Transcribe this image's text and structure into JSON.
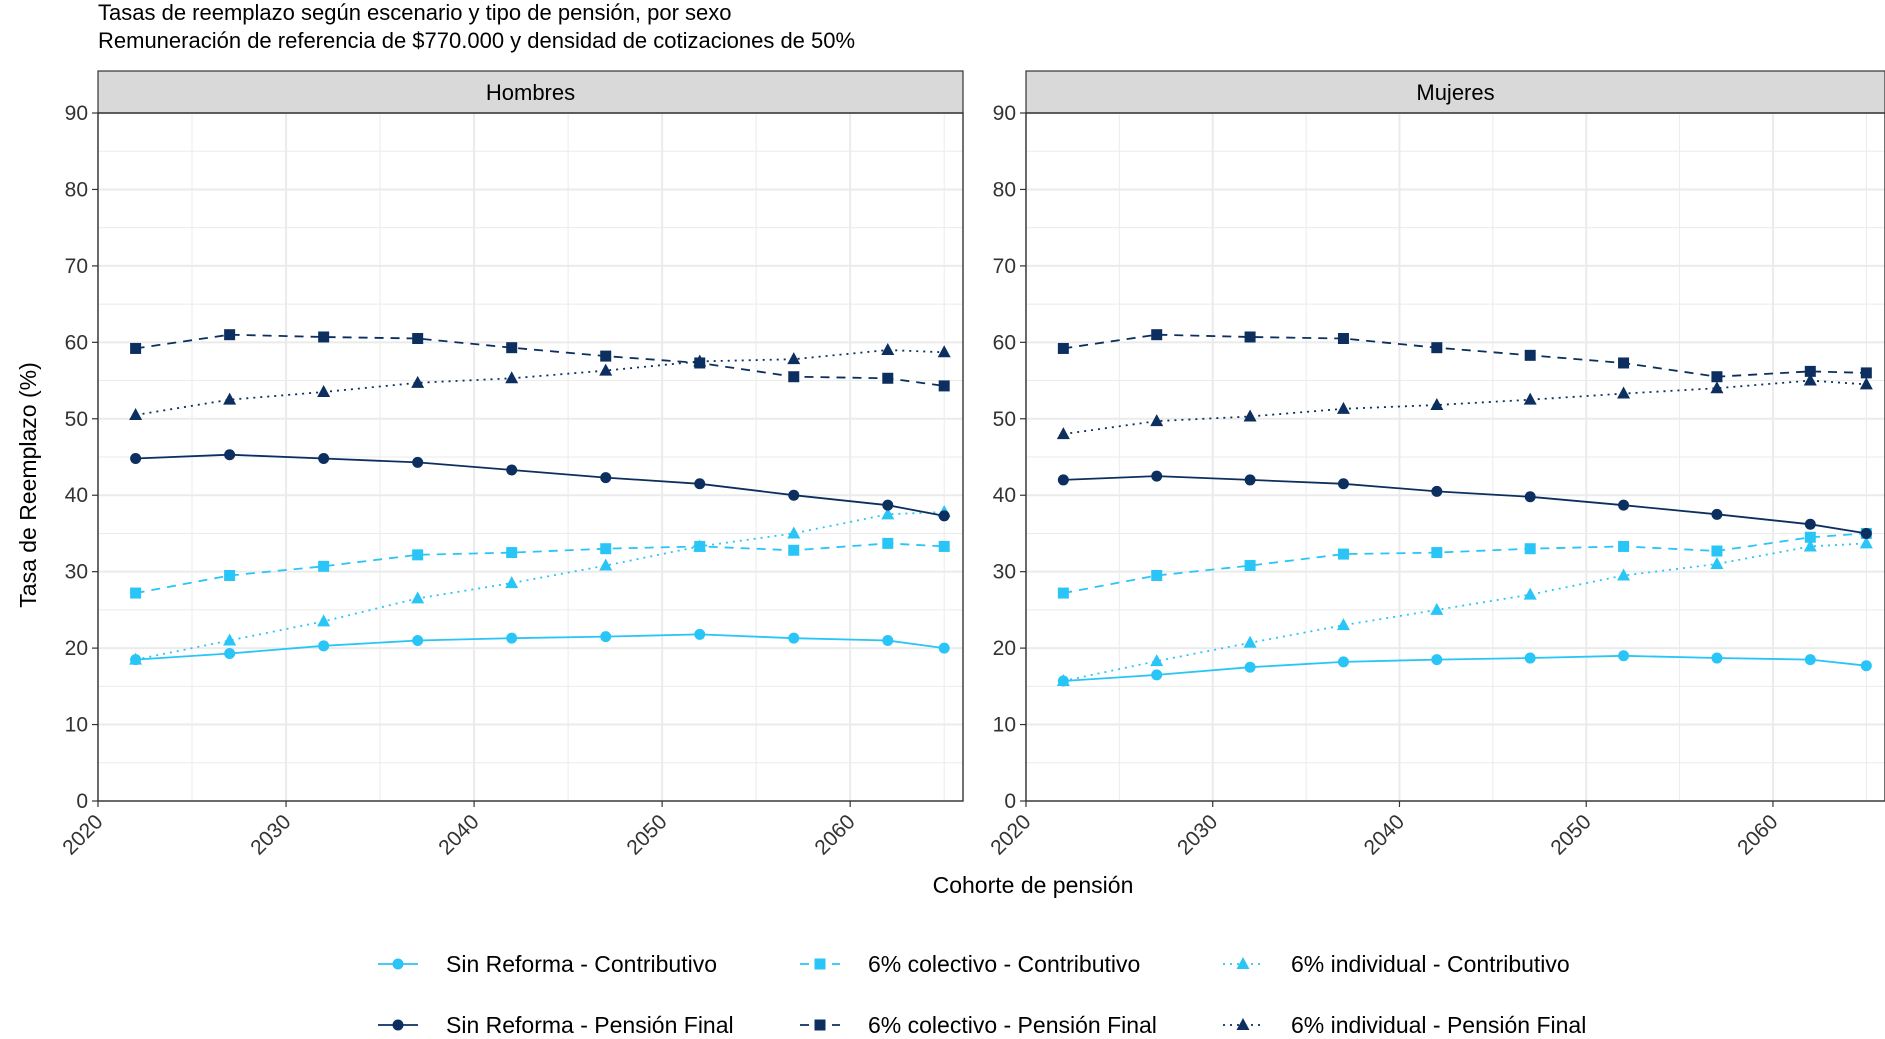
{
  "title_line_1": "Tasas de reemplazo según escenario y tipo de pensión, por sexo",
  "title_line_2": "Remuneración de referencia de $770.000 y densidad de cotizaciones de 50%",
  "colors": {
    "light": "#29c5f6",
    "dark": "#0c2f5f",
    "panel_strip": "#d9d9d9",
    "grid": "#ebebeb"
  },
  "chart_data": {
    "type": "line",
    "xlabel": "Cohorte de pensión",
    "ylabel": "Tasa de Reemplazo (%)",
    "xlim": [
      2020,
      2066
    ],
    "ylim": [
      0,
      90
    ],
    "x_ticks": [
      "2020",
      "2030",
      "2040",
      "2050",
      "2060"
    ],
    "y_ticks": [
      "0",
      "10",
      "20",
      "30",
      "40",
      "50",
      "60",
      "70",
      "80",
      "90"
    ],
    "grid": true,
    "legend_position": "bottom",
    "x": [
      2022,
      2027,
      2032,
      2037,
      2042,
      2047,
      2052,
      2057,
      2062,
      2065
    ],
    "panels": [
      {
        "name": "Hombres",
        "series": [
          {
            "name": "Sin Reforma - Contributivo",
            "values": [
              18.5,
              19.3,
              20.3,
              21.0,
              21.3,
              21.5,
              21.8,
              21.3,
              21.0,
              20.0
            ]
          },
          {
            "name": "6% colectivo - Contributivo",
            "values": [
              27.2,
              29.5,
              30.7,
              32.2,
              32.5,
              33.0,
              33.3,
              32.8,
              33.7,
              33.3
            ]
          },
          {
            "name": "6% individual - Contributivo",
            "values": [
              18.5,
              21.0,
              23.5,
              26.5,
              28.5,
              30.8,
              33.3,
              35.0,
              37.5,
              37.8
            ]
          },
          {
            "name": "Sin Reforma - Pensión Final",
            "values": [
              44.8,
              45.3,
              44.8,
              44.3,
              43.3,
              42.3,
              41.5,
              40.0,
              38.7,
              37.3
            ]
          },
          {
            "name": "6% colectivo - Pensión Final",
            "values": [
              59.2,
              61.0,
              60.7,
              60.5,
              59.3,
              58.2,
              57.3,
              55.5,
              55.3,
              54.3
            ]
          },
          {
            "name": "6% individual - Pensión Final",
            "values": [
              50.5,
              52.5,
              53.5,
              54.7,
              55.3,
              56.3,
              57.5,
              57.8,
              59.0,
              58.7
            ]
          }
        ]
      },
      {
        "name": "Mujeres",
        "series": [
          {
            "name": "Sin Reforma - Contributivo",
            "values": [
              15.7,
              16.5,
              17.5,
              18.2,
              18.5,
              18.7,
              19.0,
              18.7,
              18.5,
              17.7
            ]
          },
          {
            "name": "6% colectivo - Contributivo",
            "values": [
              27.2,
              29.5,
              30.8,
              32.3,
              32.5,
              33.0,
              33.3,
              32.7,
              34.5,
              35.0
            ]
          },
          {
            "name": "6% individual - Contributivo",
            "values": [
              15.7,
              18.3,
              20.7,
              23.0,
              25.0,
              27.0,
              29.5,
              31.0,
              33.3,
              33.7
            ]
          },
          {
            "name": "Sin Reforma - Pensión Final",
            "values": [
              42.0,
              42.5,
              42.0,
              41.5,
              40.5,
              39.8,
              38.7,
              37.5,
              36.2,
              35.0
            ]
          },
          {
            "name": "6% colectivo - Pensión Final",
            "values": [
              59.2,
              61.0,
              60.7,
              60.5,
              59.3,
              58.3,
              57.3,
              55.5,
              56.2,
              56.0
            ]
          },
          {
            "name": "6% individual - Pensión Final",
            "values": [
              48.0,
              49.7,
              50.3,
              51.3,
              51.8,
              52.5,
              53.3,
              54.0,
              55.0,
              54.5
            ]
          }
        ]
      }
    ],
    "legend": [
      {
        "label": "Sin Reforma - Contributivo",
        "color_key": "light",
        "dash": "solid",
        "marker": "circle"
      },
      {
        "label": "6% colectivo - Contributivo",
        "color_key": "light",
        "dash": "dashed",
        "marker": "square"
      },
      {
        "label": "6% individual - Contributivo",
        "color_key": "light",
        "dash": "dotted",
        "marker": "triangle"
      },
      {
        "label": "Sin Reforma - Pensión Final",
        "color_key": "dark",
        "dash": "solid",
        "marker": "circle"
      },
      {
        "label": "6% colectivo - Pensión Final",
        "color_key": "dark",
        "dash": "dashed",
        "marker": "square"
      },
      {
        "label": "6% individual - Pensión Final",
        "color_key": "dark",
        "dash": "dotted",
        "marker": "triangle"
      }
    ]
  }
}
